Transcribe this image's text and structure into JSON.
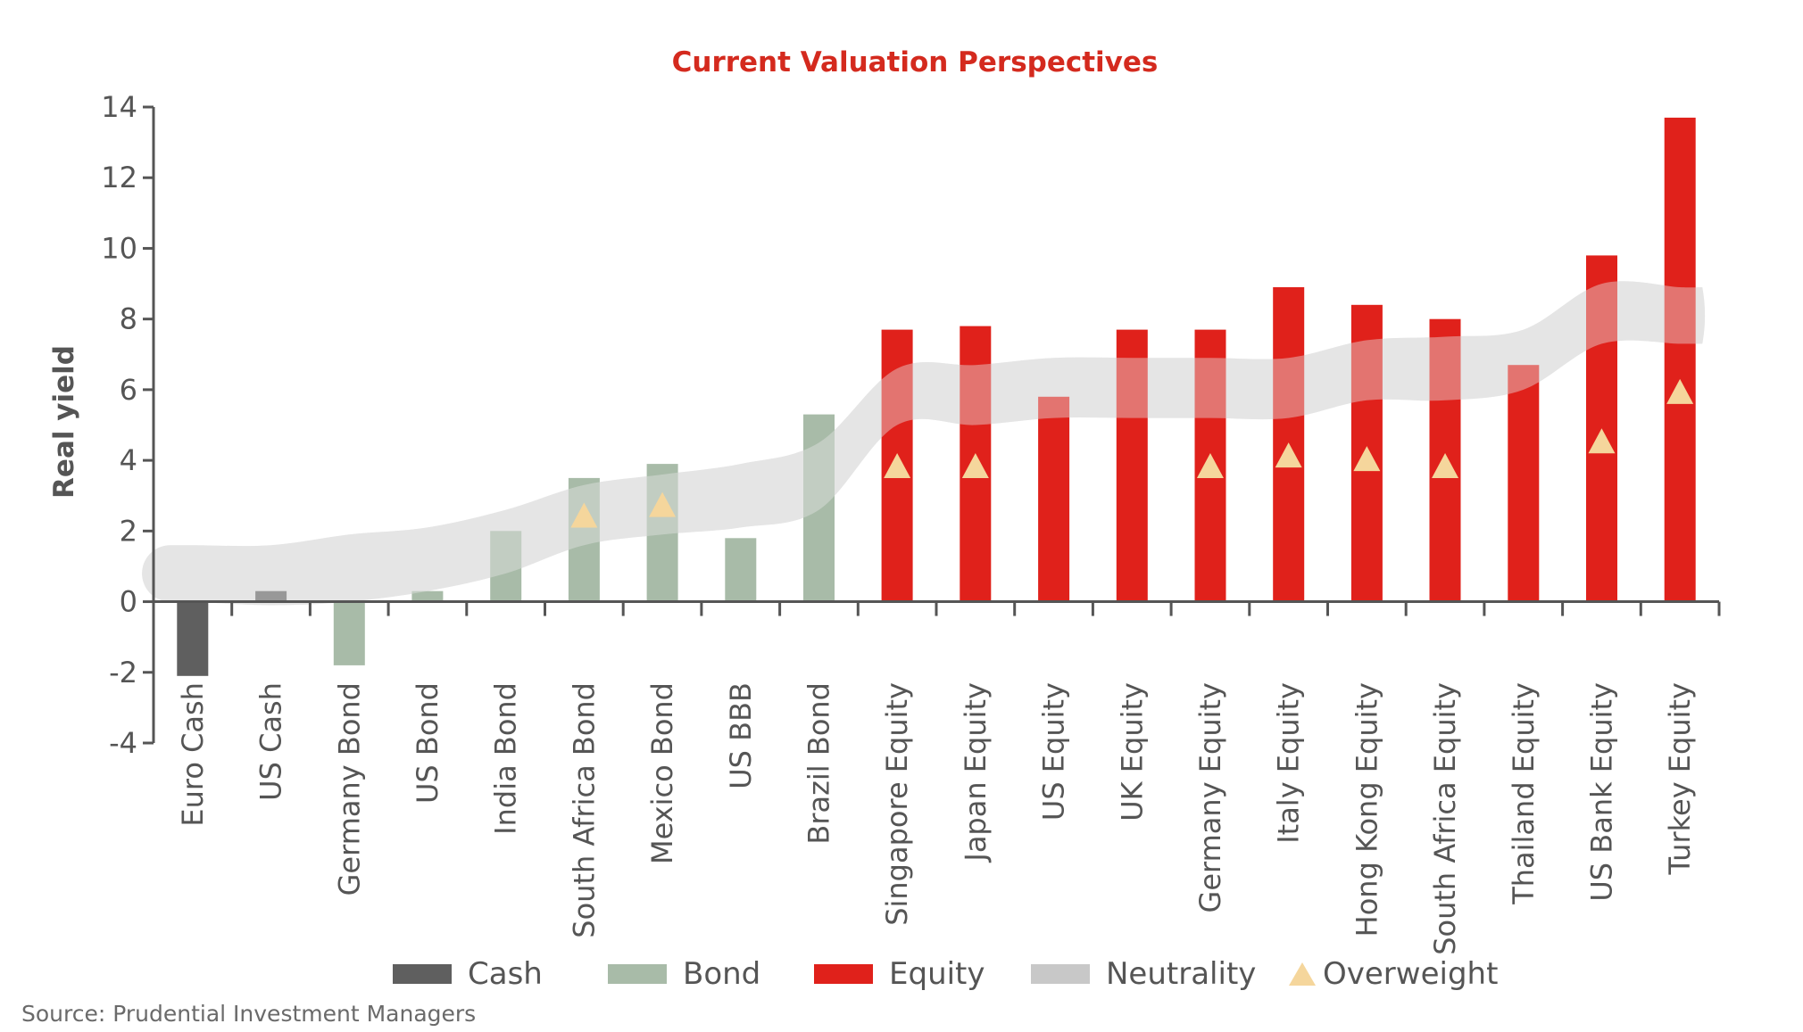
{
  "chart_data": {
    "type": "bar",
    "title": "Current Valuation Perspectives",
    "ylabel": "Real yield",
    "xlabel": "",
    "ylim": [
      -4,
      14
    ],
    "yticks": [
      -4,
      -2,
      0,
      2,
      4,
      6,
      8,
      10,
      12,
      14
    ],
    "ytick_labels": [
      "-4",
      "-2",
      "0",
      "2",
      "4",
      "6",
      "8",
      "10",
      "12",
      "14"
    ],
    "categories": [
      "Euro Cash",
      "US Cash",
      "Germany Bond",
      "US Bond",
      "India Bond",
      "South Africa Bond",
      "Mexico Bond",
      "US BBB",
      "Brazil Bond",
      "Singapore Equity",
      "Japan Equity",
      "US Equity",
      "UK Equity",
      "Germany Equity",
      "Italy Equity",
      "Hong Kong Equity",
      "South Africa Equity",
      "Thailand Equity",
      "US Bank Equity",
      "Turkey Equity"
    ],
    "values": [
      -2.1,
      0.3,
      -1.8,
      0.3,
      2.0,
      3.5,
      3.9,
      1.8,
      5.3,
      7.7,
      7.8,
      5.8,
      7.7,
      7.7,
      8.9,
      8.4,
      8.0,
      6.7,
      9.8,
      13.7
    ],
    "classes": [
      "Cash",
      "Cash",
      "Bond",
      "Bond",
      "Bond",
      "Bond",
      "Bond",
      "Bond",
      "Bond",
      "Equity",
      "Equity",
      "Equity",
      "Equity",
      "Equity",
      "Equity",
      "Equity",
      "Equity",
      "Equity",
      "Equity",
      "Equity"
    ],
    "overweight": [
      null,
      null,
      null,
      null,
      null,
      2.4,
      2.7,
      null,
      null,
      3.8,
      3.8,
      null,
      null,
      3.8,
      4.1,
      4.0,
      3.8,
      null,
      4.5,
      5.9
    ],
    "neutrality_band": {
      "upper": [
        1.6,
        1.6,
        1.9,
        2.1,
        2.6,
        3.3,
        3.6,
        3.9,
        4.5,
        6.6,
        6.7,
        6.9,
        6.9,
        6.9,
        6.9,
        7.4,
        7.5,
        7.7,
        9.0,
        8.9
      ],
      "lower": [
        0.0,
        -0.1,
        0.0,
        0.3,
        0.8,
        1.6,
        1.9,
        2.1,
        2.6,
        5.0,
        5.0,
        5.2,
        5.2,
        5.2,
        5.2,
        5.7,
        5.7,
        6.0,
        7.3,
        7.3
      ]
    },
    "legend": [
      {
        "name": "Cash",
        "color": "#5f5f5f",
        "shape": "bar"
      },
      {
        "name": "Bond",
        "color": "#a8bba8",
        "shape": "bar"
      },
      {
        "name": "Equity",
        "color": "#e0211b",
        "shape": "bar"
      },
      {
        "name": "Neutrality",
        "color": "#c8c8c8",
        "shape": "bar"
      },
      {
        "name": "Overweight",
        "color": "#f5d69c",
        "shape": "triangle"
      }
    ],
    "legend_position": "bottom",
    "colors": {
      "Cash": "#5f5f5f",
      "Bond": "#a8bba8",
      "Equity": "#e0211b",
      "Neutrality": "#d6d6d6",
      "Overweight": "#f5d69c",
      "title": "#d42a1e",
      "axis": "#555555"
    },
    "grid": false
  },
  "source": "Source: Prudential Investment Managers"
}
